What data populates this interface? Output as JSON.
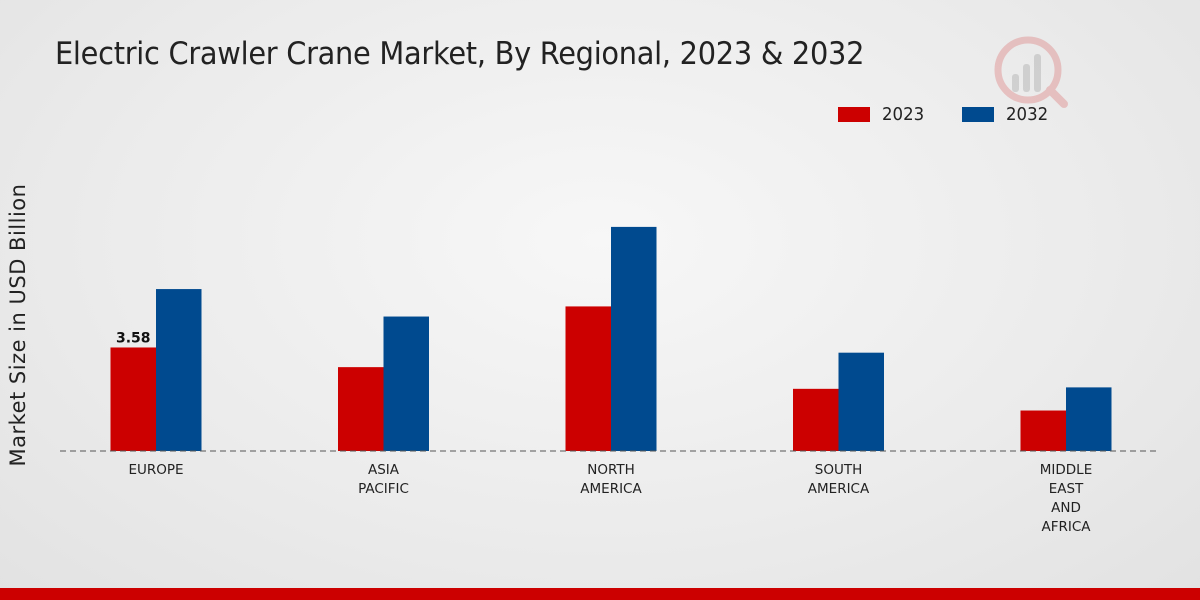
{
  "chart_data": {
    "type": "bar",
    "title": "Electric Crawler Crane Market, By Regional, 2023 & 2032",
    "xlabel": "",
    "ylabel": "Market Size in USD Billion",
    "categories": [
      [
        "EUROPE"
      ],
      [
        "ASIA",
        "PACIFIC"
      ],
      [
        "NORTH",
        "AMERICA"
      ],
      [
        "SOUTH",
        "AMERICA"
      ],
      [
        "MIDDLE",
        "EAST",
        "AND",
        "AFRICA"
      ]
    ],
    "series": [
      {
        "name": "2023",
        "color": "#cc0000",
        "values": [
          3.58,
          2.9,
          5.0,
          2.15,
          1.4
        ]
      },
      {
        "name": "2032",
        "color": "#004a8f",
        "values": [
          5.6,
          4.65,
          7.75,
          3.4,
          2.2
        ]
      }
    ],
    "data_labels": [
      {
        "series": 0,
        "index": 0,
        "text": "3.58"
      }
    ],
    "ylim": [
      0,
      12
    ],
    "grid": false,
    "legend": "top-right"
  }
}
